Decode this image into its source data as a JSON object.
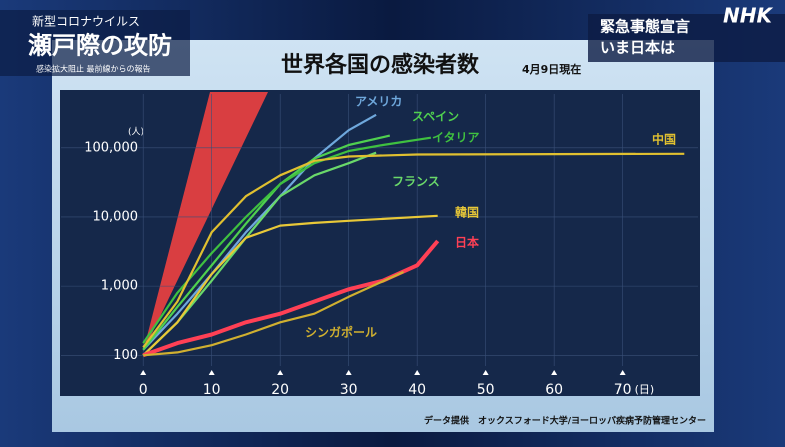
{
  "header": {
    "program_line1": "新型コロナウイルス",
    "program_line2": "瀬戸際の攻防",
    "program_line3": "感染拡大阻止 最前線からの報告",
    "topic_line1": "緊急事態宣言",
    "topic_line2": "いま日本は",
    "logo": "NHK"
  },
  "chart_data": {
    "type": "line",
    "title": "世界各国の感染者数",
    "subtitle": "4月9日現在",
    "y_unit": "(人)",
    "x_unit": "(日)",
    "source": "データ提供　オックスフォード大学/ヨーロッパ疾病予防管理センター",
    "log_scale": true,
    "xlim": [
      -12,
      81
    ],
    "ylim": [
      70,
      600000
    ],
    "xticks": [
      0,
      10,
      20,
      30,
      40,
      50,
      60,
      70
    ],
    "yticks": [
      {
        "value": 100,
        "label": "100"
      },
      {
        "value": 1000,
        "label": "1,000"
      },
      {
        "value": 10000,
        "label": "10,000"
      },
      {
        "value": 100000,
        "label": "100,000"
      }
    ],
    "series": [
      {
        "name": "アメリカ",
        "color": "#6fa8dc",
        "x": [
          0,
          5,
          10,
          15,
          20,
          25,
          30,
          34
        ],
        "values": [
          120,
          400,
          1500,
          6000,
          20000,
          70000,
          180000,
          300000
        ]
      },
      {
        "name": "スペイン",
        "color": "#4fd04f",
        "x": [
          0,
          5,
          10,
          15,
          20,
          25,
          30,
          36
        ],
        "values": [
          120,
          500,
          2000,
          8000,
          30000,
          70000,
          110000,
          150000
        ]
      },
      {
        "name": "イタリア",
        "color": "#3fc040",
        "x": [
          0,
          5,
          10,
          15,
          20,
          25,
          30,
          35,
          42
        ],
        "values": [
          150,
          800,
          3000,
          10000,
          30000,
          60000,
          90000,
          110000,
          140000
        ]
      },
      {
        "name": "フランス",
        "color": "#6ad86a",
        "x": [
          0,
          5,
          10,
          15,
          20,
          25,
          30,
          34
        ],
        "values": [
          100,
          300,
          1200,
          5000,
          20000,
          40000,
          60000,
          85000
        ]
      },
      {
        "name": "中国",
        "color": "#e0c030",
        "x": [
          0,
          5,
          10,
          15,
          20,
          25,
          30,
          40,
          60,
          79
        ],
        "values": [
          130,
          600,
          6000,
          20000,
          40000,
          65000,
          75000,
          80000,
          81000,
          82000
        ]
      },
      {
        "name": "韓国",
        "color": "#e8c838",
        "x": [
          0,
          5,
          10,
          15,
          20,
          25,
          30,
          43
        ],
        "values": [
          100,
          300,
          1500,
          5000,
          7500,
          8200,
          8800,
          10400
        ]
      },
      {
        "name": "日本",
        "color": "#ff4055",
        "x": [
          0,
          5,
          10,
          15,
          20,
          25,
          30,
          35,
          40,
          43
        ],
        "values": [
          100,
          150,
          200,
          300,
          400,
          600,
          900,
          1200,
          2000,
          4500
        ]
      },
      {
        "name": "シンガポール",
        "color": "#d0b030",
        "x": [
          0,
          5,
          10,
          15,
          20,
          25,
          30,
          38
        ],
        "values": [
          100,
          110,
          140,
          200,
          300,
          400,
          700,
          1600
        ]
      }
    ]
  }
}
